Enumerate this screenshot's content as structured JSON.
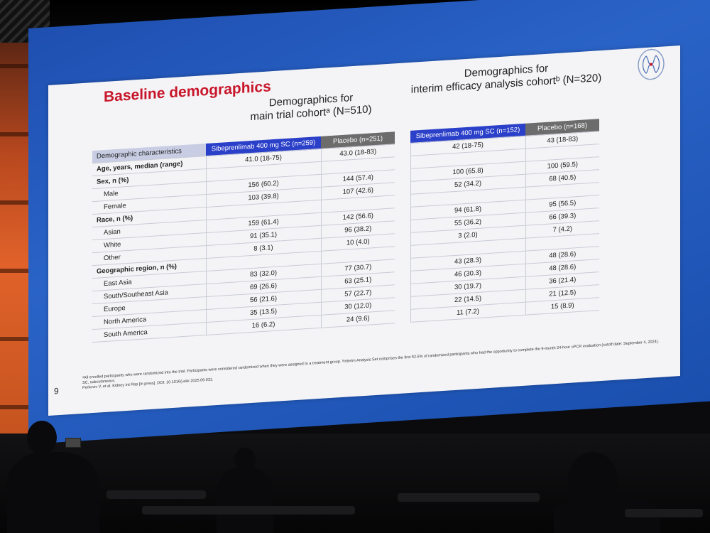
{
  "slide": {
    "title": "Baseline demographics",
    "page_number": "9",
    "main_header": {
      "line1": "Demographics for",
      "line2": "main trial cohortᵃ (N=510)"
    },
    "interim_header": {
      "line1": "Demographics for",
      "line2": "interim efficacy analysis cohortᵇ (N=320)"
    },
    "columns": {
      "characteristics": "Demographic characteristics",
      "sib_main": "Sibeprenlimab 400 mg SC (n=259)",
      "placebo_main": "Placebo (n=251)",
      "sib_interim": "Sibeprenlimab 400 mg SC (n=152)",
      "placebo_interim": "Placebo (n=168)"
    },
    "rows": [
      {
        "label": "Age, years, median (range)",
        "type": "section",
        "v": [
          "41.0 (18-75)",
          "43.0 (18-83)",
          "42 (18-75)",
          "43 (18-83)"
        ]
      },
      {
        "label": "Sex, n (%)",
        "type": "section",
        "v": [
          "",
          "",
          "",
          ""
        ]
      },
      {
        "label": "Male",
        "type": "sub",
        "v": [
          "156 (60.2)",
          "144 (57.4)",
          "100 (65.8)",
          "100 (59.5)"
        ]
      },
      {
        "label": "Female",
        "type": "sub",
        "v": [
          "103 (39.8)",
          "107 (42.6)",
          "52 (34.2)",
          "68 (40.5)"
        ]
      },
      {
        "label": "Race, n (%)",
        "type": "section",
        "v": [
          "",
          "",
          "",
          ""
        ]
      },
      {
        "label": "Asian",
        "type": "sub",
        "v": [
          "159 (61.4)",
          "142 (56.6)",
          "94 (61.8)",
          "95 (56.5)"
        ]
      },
      {
        "label": "White",
        "type": "sub",
        "v": [
          "91 (35.1)",
          "96 (38.2)",
          "55 (36.2)",
          "66 (39.3)"
        ]
      },
      {
        "label": "Other",
        "type": "sub",
        "v": [
          "8 (3.1)",
          "10 (4.0)",
          "3 (2.0)",
          "7 (4.2)"
        ]
      },
      {
        "label": "Geographic region, n (%)",
        "type": "section",
        "v": [
          "",
          "",
          "",
          ""
        ]
      },
      {
        "label": "East Asia",
        "type": "sub",
        "v": [
          "83 (32.0)",
          "77 (30.7)",
          "43 (28.3)",
          "48 (28.6)"
        ]
      },
      {
        "label": "South/Southeast Asia",
        "type": "sub",
        "v": [
          "69 (26.6)",
          "63 (25.1)",
          "46 (30.3)",
          "48 (28.6)"
        ]
      },
      {
        "label": "Europe",
        "type": "sub",
        "v": [
          "56 (21.6)",
          "57 (22.7)",
          "30 (19.7)",
          "36 (21.4)"
        ]
      },
      {
        "label": "North America",
        "type": "sub",
        "v": [
          "35 (13.5)",
          "30 (12.0)",
          "22 (14.5)",
          "21 (12.5)"
        ]
      },
      {
        "label": "South America",
        "type": "sub",
        "v": [
          "16 (6.2)",
          "24 (9.6)",
          "11 (7.2)",
          "15 (8.9)"
        ]
      }
    ],
    "footnotes": [
      "ᵃAll enrolled participants who were randomized into the trial. Participants were considered randomized when they were assigned to a treatment group. ᵇInterim Analysis Set comprises the first 62.5% of randomized participants who had the opportunity to complete the 9-month 24-hour uPCR evaluation (cutoff date: September 4, 2024).",
      "SC, subcutaneous.",
      "Perkovic V, et al. Kidney Int Rep [in press]. DOI: 10.1016/j.ekir.2025.09.031."
    ]
  },
  "colors": {
    "title_red": "#c8162a",
    "sibeprenlimab_header": "#2b40c9",
    "placebo_header": "#6c6c6c",
    "characteristics_header": "#c8cde3",
    "screen_frame": "#1e4fb0"
  },
  "icons": [
    "kidney-logo-icon"
  ]
}
